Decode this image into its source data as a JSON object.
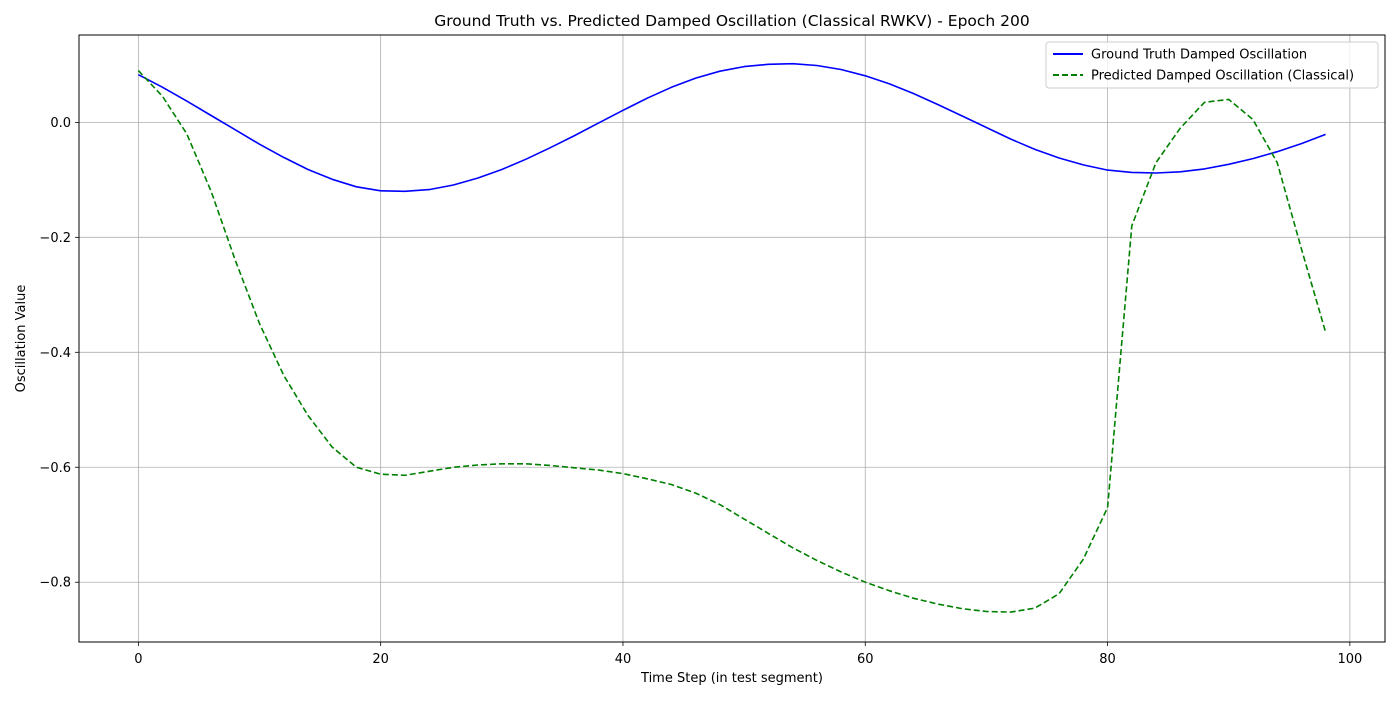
{
  "chart_data": {
    "type": "line",
    "title": "Ground Truth vs. Predicted Damped Oscillation (Classical RWKV) - Epoch 200",
    "xlabel": "Time Step (in test segment)",
    "ylabel": "Oscillation Value",
    "xlim": [
      -4.9,
      102.9
    ],
    "ylim": [
      -0.904,
      0.152
    ],
    "xticks": [
      0,
      20,
      40,
      60,
      80,
      100
    ],
    "xtick_labels": [
      "0",
      "20",
      "40",
      "60",
      "80",
      "100"
    ],
    "yticks": [
      0.0,
      -0.2,
      -0.4,
      -0.6,
      -0.8
    ],
    "ytick_labels": [
      "0.0",
      "−0.2",
      "−0.4",
      "−0.6",
      "−0.8"
    ],
    "grid": true,
    "legend_position": "top-right",
    "x": [
      0,
      2,
      4,
      6,
      8,
      10,
      12,
      14,
      16,
      18,
      20,
      22,
      24,
      26,
      28,
      30,
      32,
      34,
      36,
      38,
      40,
      42,
      44,
      46,
      48,
      50,
      52,
      54,
      56,
      58,
      60,
      62,
      64,
      66,
      68,
      70,
      72,
      74,
      76,
      78,
      80,
      82,
      84,
      86,
      88,
      90,
      92,
      94,
      96,
      98
    ],
    "series": [
      {
        "name": "Ground Truth Damped Oscillation",
        "color": "#0000ff",
        "dash": "solid",
        "values": [
          0.083,
          0.061,
          0.037,
          0.012,
          -0.013,
          -0.038,
          -0.061,
          -0.082,
          -0.099,
          -0.112,
          -0.119,
          -0.12,
          -0.117,
          -0.109,
          -0.097,
          -0.082,
          -0.064,
          -0.044,
          -0.023,
          -0.001,
          0.021,
          0.042,
          0.061,
          0.077,
          0.089,
          0.097,
          0.101,
          0.102,
          0.099,
          0.092,
          0.081,
          0.067,
          0.05,
          0.031,
          0.011,
          -0.009,
          -0.029,
          -0.047,
          -0.062,
          -0.074,
          -0.083,
          -0.087,
          -0.088,
          -0.086,
          -0.081,
          -0.073,
          -0.063,
          -0.051,
          -0.037,
          -0.021
        ]
      },
      {
        "name": "Predicted Damped Oscillation (Classical)",
        "color": "#008000",
        "dash": "dashed",
        "values": [
          0.09,
          0.045,
          -0.02,
          -0.12,
          -0.24,
          -0.35,
          -0.44,
          -0.51,
          -0.565,
          -0.6,
          -0.612,
          -0.614,
          -0.607,
          -0.6,
          -0.596,
          -0.594,
          -0.594,
          -0.597,
          -0.601,
          -0.605,
          -0.611,
          -0.62,
          -0.63,
          -0.645,
          -0.665,
          -0.69,
          -0.715,
          -0.74,
          -0.762,
          -0.782,
          -0.8,
          -0.815,
          -0.828,
          -0.838,
          -0.846,
          -0.851,
          -0.852,
          -0.845,
          -0.82,
          -0.76,
          -0.67,
          -0.18,
          -0.07,
          -0.01,
          0.035,
          0.04,
          0.005,
          -0.07,
          -0.22,
          -0.365
        ]
      }
    ]
  }
}
